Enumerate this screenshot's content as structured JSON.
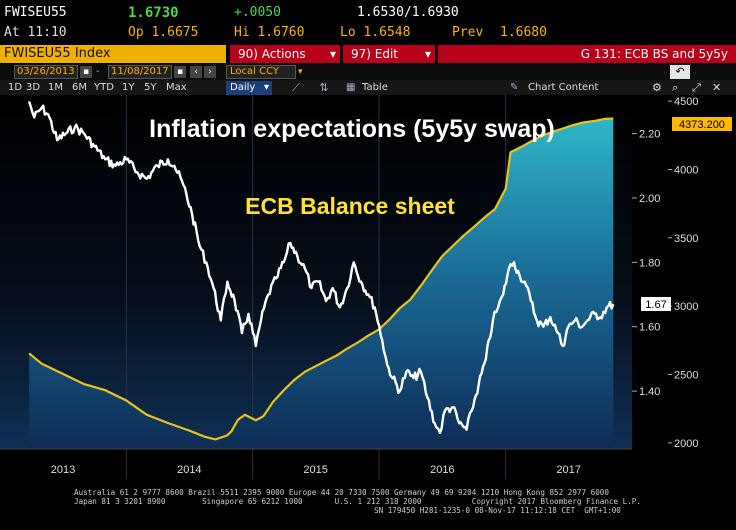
{
  "quote": {
    "ticker": "FWISEU55",
    "last": "1.6730",
    "change": "+.0050",
    "range": "1.6530/1.6930",
    "time_label": "At 11:10",
    "open_label": "Op 1.6675",
    "high_label": "Hi 1.6760",
    "low_label": "Lo 1.6548",
    "prev_label": "Prev",
    "prev_value": "1.6680"
  },
  "toolbar": {
    "security": "FWISEU55 Index",
    "actions": "90) Actions",
    "edit": "97) Edit",
    "chart_name": "G 131: ECB BS and 5y5y"
  },
  "dates": {
    "start": "03/26/2013",
    "end": "11/08/2017",
    "currency": "Local CCY"
  },
  "periods": [
    "1D",
    "3D",
    "1M",
    "6M",
    "YTD",
    "1Y",
    "5Y",
    "Max"
  ],
  "frequency": "Daily",
  "table_label": "Table",
  "chart_content_label": "Chart Content",
  "colors": {
    "inflation_line": "#ffffff",
    "balance_line": "#e8c417",
    "title_text": "#ffffff",
    "balance_label_text": "#ffe033",
    "accent_red": "#c0001a",
    "last_value_box": "#ffb800"
  },
  "chart_data": {
    "type": "line",
    "title": "Inflation expectations (5y5y swap)",
    "annotation": "ECB Balance sheet",
    "x_labels": [
      "2013",
      "2014",
      "2015",
      "2016",
      "2017"
    ],
    "y_left_ticks": [
      "2.20",
      "2.00",
      "1.80",
      "1.60",
      "1.40"
    ],
    "y_right_ticks": [
      "4500",
      "4000",
      "3500",
      "3000",
      "2500",
      "2000"
    ],
    "y_left_range": [
      1.22,
      2.32
    ],
    "y_right_range": [
      1955,
      4545
    ],
    "last_value_left": "1.67",
    "last_value_right": "4373.200",
    "series": [
      {
        "axis": "left",
        "color": "white",
        "points": [
          [
            "2013-03-26",
            2.3
          ],
          [
            "2013-04-10",
            2.25
          ],
          [
            "2013-05-01",
            2.28
          ],
          [
            "2013-05-20",
            2.26
          ],
          [
            "2013-06-15",
            2.18
          ],
          [
            "2013-07-10",
            2.2
          ],
          [
            "2013-08-05",
            2.22
          ],
          [
            "2013-09-01",
            2.2
          ],
          [
            "2013-10-01",
            2.16
          ],
          [
            "2013-11-01",
            2.12
          ],
          [
            "2013-12-01",
            2.1
          ],
          [
            "2014-01-01",
            2.12
          ],
          [
            "2014-02-01",
            2.08
          ],
          [
            "2014-03-01",
            2.06
          ],
          [
            "2014-04-01",
            2.1
          ],
          [
            "2014-05-01",
            2.12
          ],
          [
            "2014-05-20",
            2.1
          ],
          [
            "2014-06-15",
            2.04
          ],
          [
            "2014-07-10",
            1.95
          ],
          [
            "2014-08-01",
            1.85
          ],
          [
            "2014-08-20",
            1.8
          ],
          [
            "2014-09-10",
            1.72
          ],
          [
            "2014-10-01",
            1.62
          ],
          [
            "2014-10-20",
            1.74
          ],
          [
            "2014-11-10",
            1.68
          ],
          [
            "2014-12-01",
            1.58
          ],
          [
            "2014-12-20",
            1.64
          ],
          [
            "2015-01-10",
            1.54
          ],
          [
            "2015-01-25",
            1.62
          ],
          [
            "2015-02-15",
            1.7
          ],
          [
            "2015-03-10",
            1.75
          ],
          [
            "2015-04-01",
            1.8
          ],
          [
            "2015-04-20",
            1.86
          ],
          [
            "2015-05-10",
            1.82
          ],
          [
            "2015-06-01",
            1.78
          ],
          [
            "2015-06-20",
            1.72
          ],
          [
            "2015-07-10",
            1.74
          ],
          [
            "2015-08-01",
            1.68
          ],
          [
            "2015-08-20",
            1.72
          ],
          [
            "2015-09-10",
            1.66
          ],
          [
            "2015-10-01",
            1.72
          ],
          [
            "2015-10-20",
            1.8
          ],
          [
            "2015-11-10",
            1.74
          ],
          [
            "2015-12-01",
            1.7
          ],
          [
            "2015-12-20",
            1.66
          ],
          [
            "2016-01-10",
            1.56
          ],
          [
            "2016-01-25",
            1.48
          ],
          [
            "2016-02-10",
            1.44
          ],
          [
            "2016-03-01",
            1.4
          ],
          [
            "2016-03-20",
            1.46
          ],
          [
            "2016-04-10",
            1.44
          ],
          [
            "2016-05-01",
            1.46
          ],
          [
            "2016-05-20",
            1.38
          ],
          [
            "2016-06-10",
            1.3
          ],
          [
            "2016-06-25",
            1.27
          ],
          [
            "2016-07-10",
            1.34
          ],
          [
            "2016-08-01",
            1.35
          ],
          [
            "2016-08-20",
            1.3
          ],
          [
            "2016-09-10",
            1.28
          ],
          [
            "2016-09-25",
            1.34
          ],
          [
            "2016-10-15",
            1.42
          ],
          [
            "2016-11-05",
            1.5
          ],
          [
            "2016-11-25",
            1.62
          ],
          [
            "2016-12-10",
            1.66
          ],
          [
            "2016-12-25",
            1.7
          ],
          [
            "2017-01-10",
            1.78
          ],
          [
            "2017-01-25",
            1.8
          ],
          [
            "2017-02-10",
            1.76
          ],
          [
            "2017-02-25",
            1.74
          ],
          [
            "2017-03-15",
            1.68
          ],
          [
            "2017-04-01",
            1.62
          ],
          [
            "2017-04-20",
            1.6
          ],
          [
            "2017-05-10",
            1.63
          ],
          [
            "2017-06-01",
            1.58
          ],
          [
            "2017-06-15",
            1.54
          ],
          [
            "2017-07-01",
            1.6
          ],
          [
            "2017-07-20",
            1.62
          ],
          [
            "2017-08-10",
            1.6
          ],
          [
            "2017-08-25",
            1.62
          ],
          [
            "2017-09-15",
            1.64
          ],
          [
            "2017-10-01",
            1.63
          ],
          [
            "2017-10-20",
            1.66
          ],
          [
            "2017-11-08",
            1.67
          ]
        ]
      },
      {
        "axis": "right",
        "color": "yellow",
        "points": [
          [
            "2013-03-26",
            2655
          ],
          [
            "2013-05-01",
            2580
          ],
          [
            "2013-07-01",
            2505
          ],
          [
            "2013-09-01",
            2430
          ],
          [
            "2013-11-01",
            2385
          ],
          [
            "2014-01-01",
            2310
          ],
          [
            "2014-03-01",
            2205
          ],
          [
            "2014-05-01",
            2145
          ],
          [
            "2014-07-01",
            2090
          ],
          [
            "2014-08-15",
            2045
          ],
          [
            "2014-09-15",
            2025
          ],
          [
            "2014-10-20",
            2055
          ],
          [
            "2014-11-01",
            2085
          ],
          [
            "2014-11-20",
            2170
          ],
          [
            "2014-12-10",
            2205
          ],
          [
            "2015-01-10",
            2165
          ],
          [
            "2015-02-01",
            2195
          ],
          [
            "2015-03-01",
            2300
          ],
          [
            "2015-04-01",
            2385
          ],
          [
            "2015-05-01",
            2460
          ],
          [
            "2015-06-01",
            2520
          ],
          [
            "2015-07-01",
            2560
          ],
          [
            "2015-08-01",
            2600
          ],
          [
            "2015-09-01",
            2640
          ],
          [
            "2015-10-01",
            2690
          ],
          [
            "2015-11-01",
            2735
          ],
          [
            "2015-12-01",
            2785
          ],
          [
            "2016-01-01",
            2830
          ],
          [
            "2016-02-01",
            2905
          ],
          [
            "2016-03-01",
            2985
          ],
          [
            "2016-04-01",
            3050
          ],
          [
            "2016-05-01",
            3150
          ],
          [
            "2016-06-01",
            3260
          ],
          [
            "2016-07-01",
            3365
          ],
          [
            "2016-08-01",
            3440
          ],
          [
            "2016-09-01",
            3515
          ],
          [
            "2016-10-01",
            3580
          ],
          [
            "2016-11-01",
            3650
          ],
          [
            "2016-12-01",
            3710
          ],
          [
            "2017-01-01",
            3860
          ],
          [
            "2017-01-15",
            4125
          ],
          [
            "2017-02-15",
            4165
          ],
          [
            "2017-03-15",
            4205
          ],
          [
            "2017-04-15",
            4245
          ],
          [
            "2017-05-15",
            4275
          ],
          [
            "2017-06-15",
            4300
          ],
          [
            "2017-07-15",
            4325
          ],
          [
            "2017-08-15",
            4345
          ],
          [
            "2017-09-15",
            4355
          ],
          [
            "2017-10-15",
            4370
          ],
          [
            "2017-11-08",
            4373.2
          ]
        ]
      }
    ]
  },
  "footer": {
    "line1": "Australia 61 2 9777 8600 Brazil 5511 2395 9000 Europe 44 20 7330 7500 Germany 49 69 9204 1210 Hong Kong 852 2977 6000",
    "line2": "Japan 81 3 3201 8900        Singapore 65 6212 1000       U.S. 1 212 318 2000           Copyright 2017 Bloomberg Finance L.P.",
    "line3": "SN 179450 H281-1235-0 08-Nov-17 11:12:18 CET  GMT+1:00"
  }
}
